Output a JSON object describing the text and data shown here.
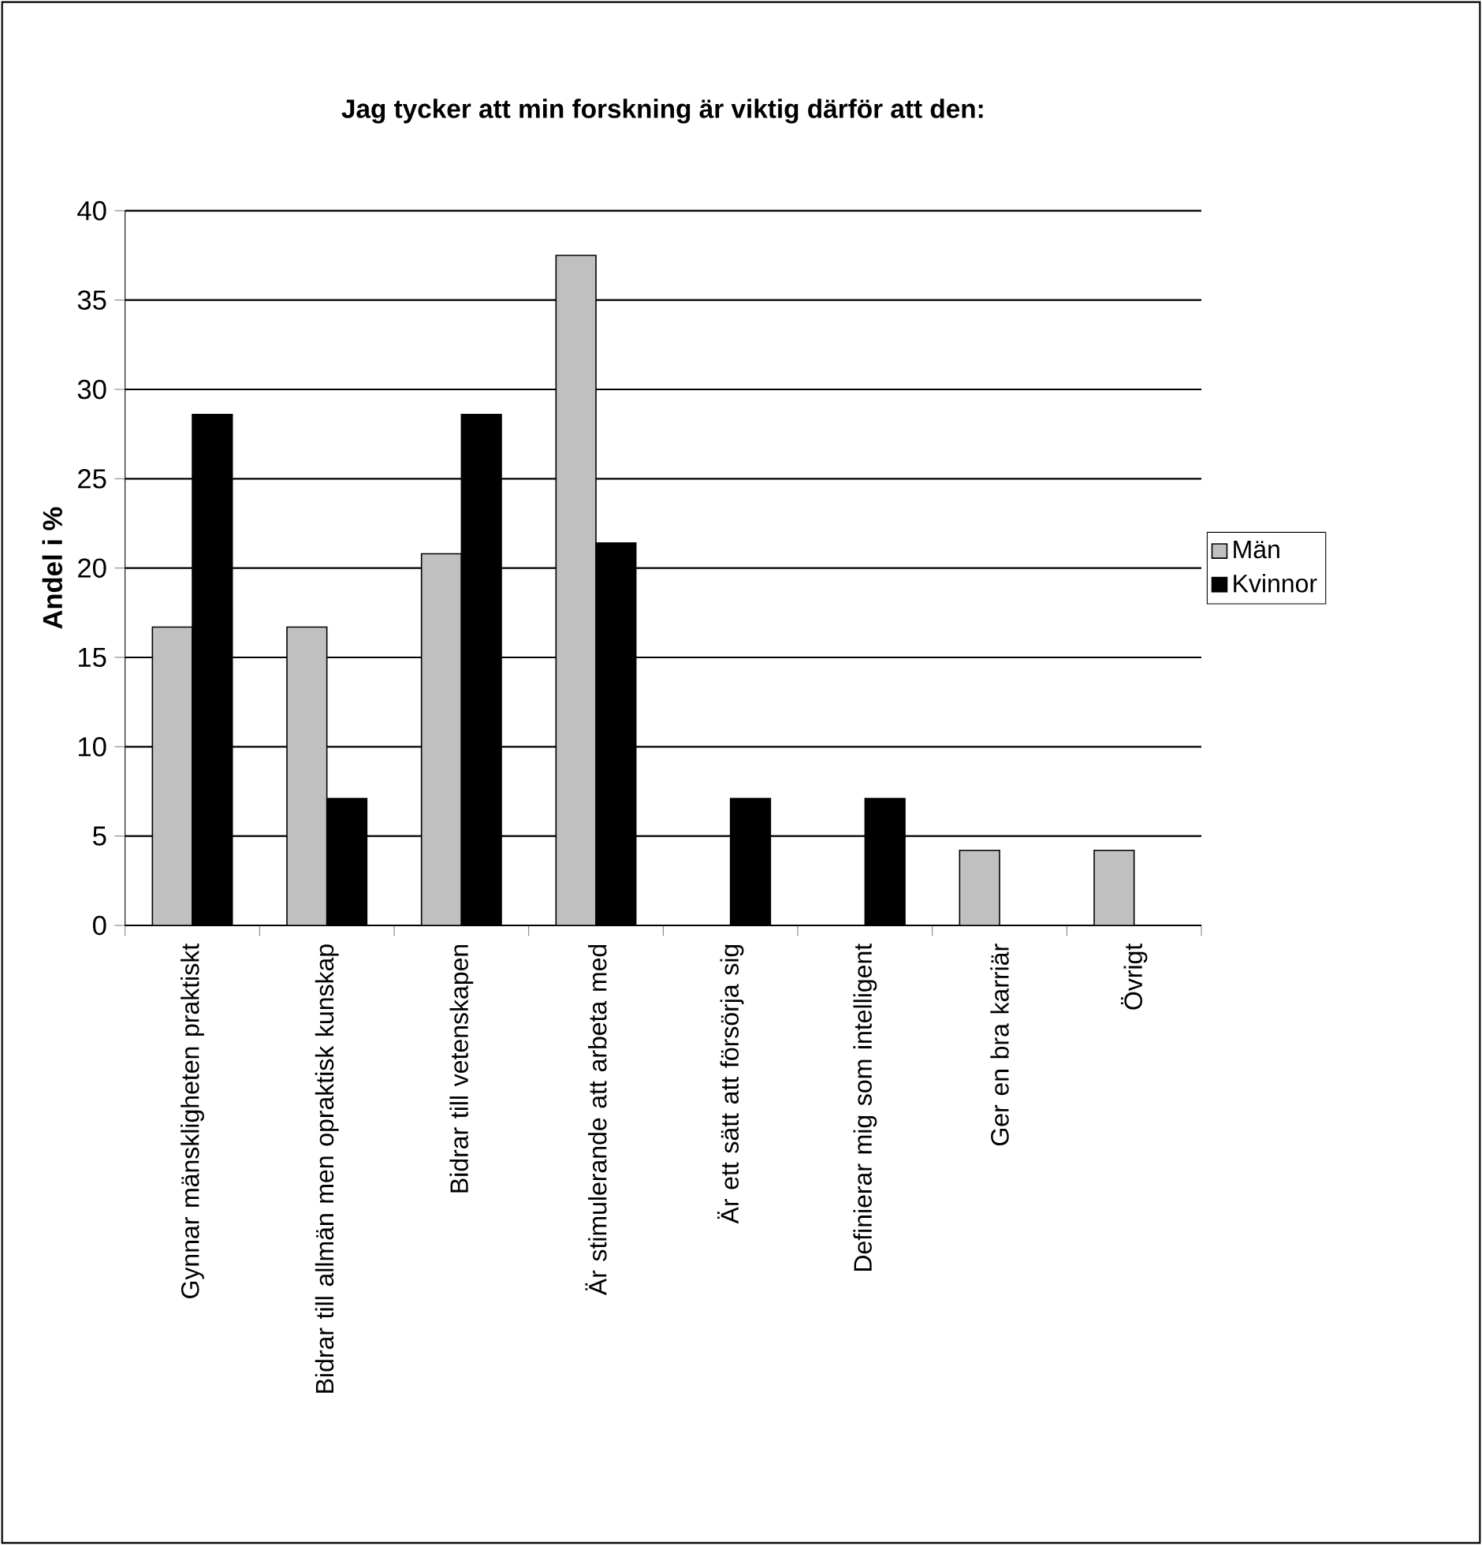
{
  "chart_data": {
    "type": "bar",
    "title": "Jag tycker att min forskning är viktig därför att den:",
    "ylabel": "Andel i %",
    "categories": [
      "Gynnar mänskligheten praktiskt",
      "Bidrar till allmän men opraktisk kunskap",
      "Bidrar till vetenskapen",
      "Är stimulerande att arbeta med",
      "Är ett sätt att försörja sig",
      "Definierar mig som intelligent",
      "Ger en bra karriär",
      "Övrigt"
    ],
    "series": [
      {
        "name": "Män",
        "color": "#c0c0c0",
        "values": [
          16.7,
          16.7,
          20.8,
          37.5,
          0,
          0,
          4.2,
          4.2
        ]
      },
      {
        "name": "Kvinnor",
        "color": "#000000",
        "values": [
          28.6,
          7.1,
          28.6,
          21.4,
          7.1,
          7.1,
          0,
          0
        ]
      }
    ],
    "ylim": [
      0,
      40
    ],
    "yticks": [
      0,
      5,
      10,
      15,
      20,
      25,
      30,
      35,
      40
    ],
    "grid": "y",
    "legend": "right"
  }
}
